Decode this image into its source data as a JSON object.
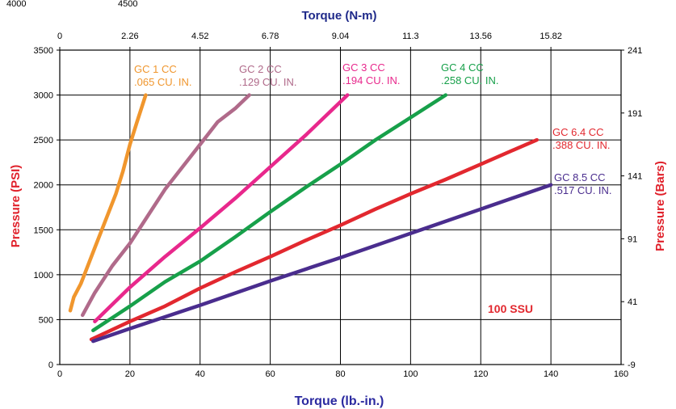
{
  "chart_data": {
    "type": "line",
    "corner_labels": [
      "4000",
      "4500"
    ],
    "x_bottom": {
      "label": "Torque (lb.-in.)",
      "ticks": [
        "0",
        "20",
        "40",
        "60",
        "80",
        "100",
        "120",
        "140",
        "160"
      ],
      "range": [
        0,
        160
      ]
    },
    "x_top": {
      "label": "Torque (N-m)",
      "ticks": [
        "0",
        "2.26",
        "4.52",
        "6.78",
        "9.04",
        "11.3",
        "13.56",
        "15.82"
      ]
    },
    "y_left": {
      "label": "Pressure (PSI)",
      "ticks": [
        "0",
        "500",
        "1000",
        "1500",
        "2000",
        "2500",
        "3000",
        "3500"
      ],
      "range": [
        0,
        3500
      ]
    },
    "y_right": {
      "label": "Pressure (Bars)",
      "ticks": [
        "-9",
        "41",
        "91",
        "141",
        "191",
        "241"
      ]
    },
    "grid": true,
    "annotation": "100 SSU",
    "colors": {
      "axis_title": "#e0202a",
      "top_title": "#1f2a8a",
      "bottom_title": "#2b2aa0"
    },
    "series": [
      {
        "name_line1": "GC 1 CC",
        "name_line2": ".065 CU. IN.",
        "color": "#f0962d",
        "x": [
          3,
          4,
          6,
          8,
          10,
          12,
          14,
          16,
          18,
          20,
          22,
          24.5
        ],
        "y": [
          600,
          750,
          900,
          1100,
          1300,
          1500,
          1700,
          1900,
          2150,
          2450,
          2700,
          3000
        ]
      },
      {
        "name_line1": "GC 2 CC",
        "name_line2": ".129 CU. IN.",
        "color": "#b06a8a",
        "x": [
          6.5,
          10,
          15,
          20,
          25,
          30,
          35,
          40,
          45,
          50,
          54
        ],
        "y": [
          550,
          800,
          1100,
          1350,
          1650,
          1950,
          2200,
          2450,
          2700,
          2850,
          3000
        ]
      },
      {
        "name_line1": "GC 3 CC",
        "name_line2": ".194 CU. IN.",
        "color": "#e8288c",
        "x": [
          10,
          20,
          30,
          40,
          50,
          60,
          70,
          82
        ],
        "y": [
          480,
          860,
          1200,
          1520,
          1850,
          2200,
          2550,
          3000
        ]
      },
      {
        "name_line1": "GC 4 CC",
        "name_line2": ".258 CU. IN.",
        "color": "#17a04a",
        "x": [
          9.5,
          20,
          30,
          40,
          50,
          60,
          70,
          80,
          90,
          100,
          110
        ],
        "y": [
          380,
          650,
          920,
          1150,
          1420,
          1700,
          1970,
          2230,
          2500,
          2750,
          3000
        ]
      },
      {
        "name_line1": "GC 6.4 CC",
        "name_line2": ".388 CU. IN.",
        "color": "#e2282f",
        "x": [
          9,
          20,
          30,
          40,
          50,
          60,
          70,
          80,
          90,
          100,
          110,
          120,
          130,
          136
        ],
        "y": [
          280,
          480,
          650,
          850,
          1030,
          1200,
          1380,
          1550,
          1730,
          1900,
          2060,
          2230,
          2400,
          2500
        ]
      },
      {
        "name_line1": "GC 8.5 CC",
        "name_line2": ".517 CU. IN.",
        "color": "#4a2d8e",
        "x": [
          9.5,
          20,
          40,
          60,
          80,
          100,
          120,
          140
        ],
        "y": [
          260,
          400,
          660,
          930,
          1190,
          1460,
          1730,
          2000
        ]
      }
    ]
  }
}
